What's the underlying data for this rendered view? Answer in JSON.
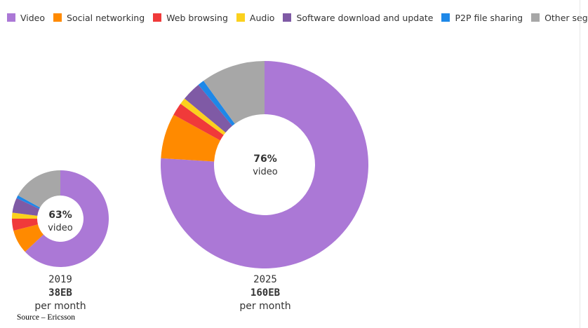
{
  "legend": [
    {
      "label": "Video",
      "color": "#ab78d6"
    },
    {
      "label": "Social networking",
      "color": "#ff8a00"
    },
    {
      "label": "Web browsing",
      "color": "#f03a3a"
    },
    {
      "label": "Audio",
      "color": "#fbd11d"
    },
    {
      "label": "Software download and update",
      "color": "#7f5aa5"
    },
    {
      "label": "P2P file sharing",
      "color": "#1e88e8"
    },
    {
      "label": "Other segments",
      "color": "#a7a7a7"
    }
  ],
  "chart_data": [
    {
      "type": "pie",
      "year": "2019",
      "total": "38EB",
      "unit": "per month",
      "center_value": "63%",
      "center_label": "video",
      "slices": [
        {
          "label": "Video",
          "value": 63
        },
        {
          "label": "Social networking",
          "value": 8
        },
        {
          "label": "Web browsing",
          "value": 4
        },
        {
          "label": "Audio",
          "value": 2
        },
        {
          "label": "Software download and update",
          "value": 5
        },
        {
          "label": "P2P file sharing",
          "value": 1
        },
        {
          "label": "Other segments",
          "value": 17
        }
      ]
    },
    {
      "type": "pie",
      "year": "2025",
      "total": "160EB",
      "unit": "per month",
      "center_value": "76%",
      "center_label": "video",
      "slices": [
        {
          "label": "Video",
          "value": 76
        },
        {
          "label": "Social networking",
          "value": 7
        },
        {
          "label": "Web browsing",
          "value": 2
        },
        {
          "label": "Audio",
          "value": 1
        },
        {
          "label": "Software download and update",
          "value": 3
        },
        {
          "label": "P2P file sharing",
          "value": 1
        },
        {
          "label": "Other segments",
          "value": 10
        }
      ]
    }
  ],
  "source": "Source – Ericsson"
}
